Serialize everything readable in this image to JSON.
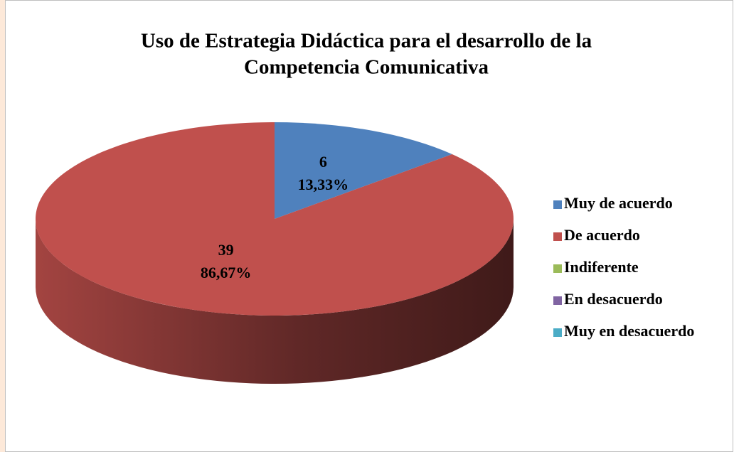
{
  "chart_data": {
    "type": "pie3d",
    "title": "Uso de Estrategia Didáctica para el desarrollo de la",
    "subtitle": "Competencia Comunicativa",
    "categories": [
      "Muy de acuerdo",
      "De acuerdo",
      "Indiferente",
      "En desacuerdo",
      "Muy en desacuerdo"
    ],
    "values": [
      6,
      39,
      0,
      0,
      0
    ],
    "percentages": [
      13.33,
      86.67,
      0,
      0,
      0
    ],
    "percentage_labels": [
      "13,33%",
      "86,67%",
      null,
      null,
      null
    ],
    "colors": [
      "#4f81bd",
      "#c0504d",
      "#9bbb59",
      "#8064a2",
      "#4bacc6"
    ],
    "legend": "right"
  }
}
